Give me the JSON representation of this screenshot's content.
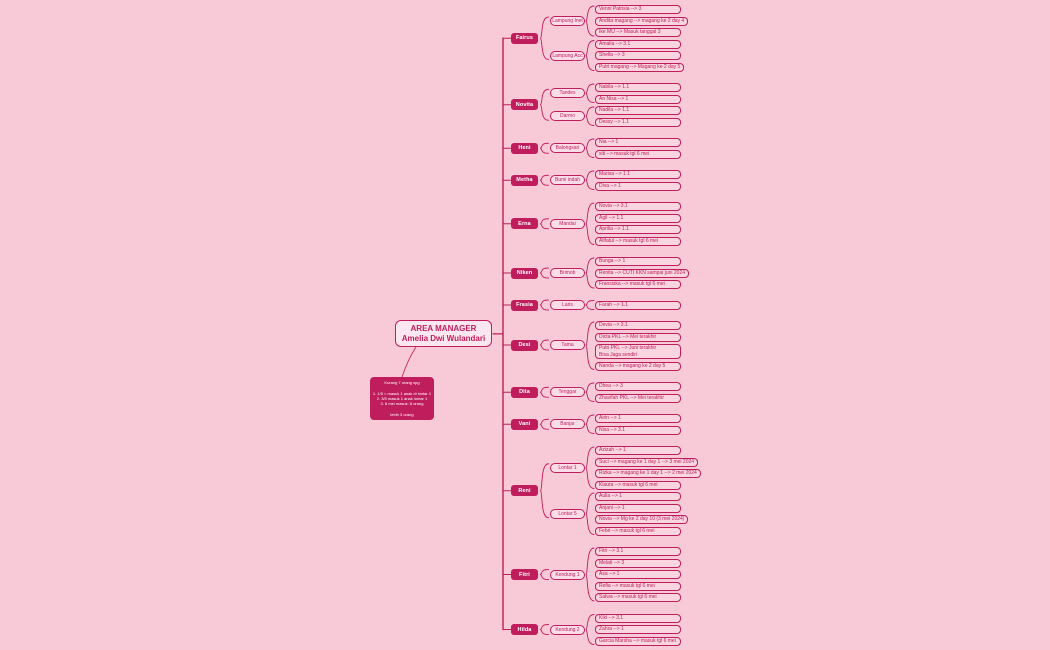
{
  "colors": {
    "accent": "#bf1d5c",
    "background": "#f8cad7",
    "node_fill": "#fbdde8",
    "root_fill": "#fce6ef",
    "leaf_fill": "rgba(255,255,255,0.22)"
  },
  "root": {
    "title": "AREA MANAGER",
    "subtitle": "Amelia Dwi Wulandari"
  },
  "note": {
    "text": "Kurang 7 orang spg\n\n1. 1/5 = masuk 1 anak di lontar 1\n2. 3/5 masuk 1 anak lontar 1\n3. 6 mei masuk: 8 orang\n\nlebih 3 orang"
  },
  "branches": [
    {
      "label": "Fairus",
      "groups": [
        {
          "label": "Lampung Inet",
          "leaves": [
            "Venni Patrisia --> 3",
            "Andita magang --> magang ke 2 day 4",
            "Ike MU --> Masuk tanggal 3"
          ]
        },
        {
          "label": "Lampung Acc",
          "leaves": [
            "Amalia --> 3.1",
            "Shella --> 3",
            "Putri magang --> Magang ke 2 day 5"
          ]
        }
      ]
    },
    {
      "label": "Novita",
      "groups": [
        {
          "label": "Tandes",
          "leaves": [
            "Nabila --> 1.1",
            "An Nisa --> 1"
          ]
        },
        {
          "label": "Darmo",
          "leaves": [
            "Nadila --> 1.1",
            "Dessy --> 1.1"
          ]
        }
      ]
    },
    {
      "label": "Heni",
      "groups": [
        {
          "label": "Balongsari",
          "leaves": [
            "Nia --> 1",
            "siti --> masuk tgl 6 mei"
          ]
        }
      ]
    },
    {
      "label": "Metha",
      "groups": [
        {
          "label": "Bumi indah",
          "leaves": [
            "Marisa --> 1.1",
            "Diva --> 1"
          ]
        }
      ]
    },
    {
      "label": "Erna",
      "groups": [
        {
          "label": "Mandai",
          "leaves": [
            "Novia --> 3.1",
            "Agil --> 1.1",
            "Aprilia --> 1.1",
            "Alifatul --> masuk tgl 6 mei"
          ]
        }
      ]
    },
    {
      "label": "Niken",
      "groups": [
        {
          "label": "Brimob",
          "leaves": [
            "Bunga --> 1",
            "Renita --> CUTI KKN sampai juni 2024",
            "Fransiska --> masuk tgl 6 mei"
          ]
        }
      ]
    },
    {
      "label": "Frasia",
      "groups": [
        {
          "label": "Laris",
          "leaves": [
            "Farah --> 1.1"
          ]
        }
      ]
    },
    {
      "label": "Desi",
      "groups": [
        {
          "label": "Tama",
          "leaves": [
            "Devia --> 3.1",
            "Dicta PKL --> Mei terakhir",
            "Putri PKL --> Juni terakhir\nBisa Jaga sendiri",
            "Nanda --> magang ke 2 day 5"
          ]
        }
      ]
    },
    {
      "label": "Dita",
      "groups": [
        {
          "label": "Tenggar",
          "leaves": [
            "Dhea --> 3",
            "Zhavifah PKL --> Mei terakhir"
          ]
        }
      ]
    },
    {
      "label": "Vani",
      "groups": [
        {
          "label": "Banjar",
          "leaves": [
            "Airin --> 1",
            "Nisa --> 3.1"
          ]
        }
      ]
    },
    {
      "label": "Reni",
      "groups": [
        {
          "label": "Lontar 1",
          "leaves": [
            "Azizah --> 1",
            "Suci --> magang ke 1 day 1 --> 3 mei 2024",
            "Rizka --> magang ke 1 day 1 --> 2 mei 2024",
            "Klaura --> masuk tgl 6 mei"
          ]
        },
        {
          "label": "Lontar 5",
          "leaves": [
            "Aulia --> 1",
            "Anjani --> 1",
            "Novia --> Mg ke 2 day 10 (3 mei 2024)",
            "Febri --> masuk tgl 6 mei"
          ]
        }
      ]
    },
    {
      "label": "Fitri",
      "groups": [
        {
          "label": "Kendung 1",
          "leaves": [
            "Fitri --> 3.1",
            "Melati --> 3",
            "Asa --> 1",
            "Refia --> masuk tgl 6 mei",
            "Salwa --> masuk tgl 6 mei"
          ]
        }
      ]
    },
    {
      "label": "Hilda",
      "groups": [
        {
          "label": "Kendung 2",
          "leaves": [
            "Kiki --> 3.1",
            "Zahra --> 1",
            "Garcia Marsha --> masuk tgl 6 mei"
          ]
        }
      ]
    }
  ]
}
